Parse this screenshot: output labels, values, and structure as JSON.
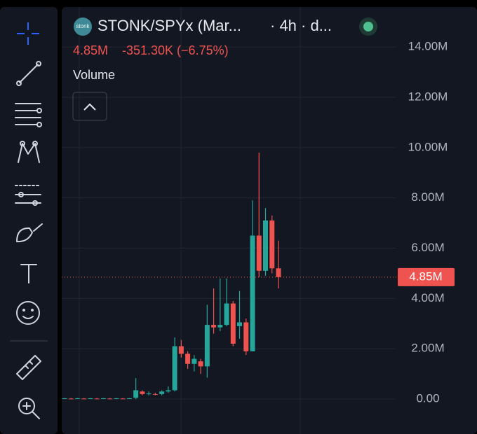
{
  "header": {
    "logo": "stonk",
    "symbol": "STONK/SPYx (Mar...",
    "interval": "· 4h · d...",
    "last": "4.85M",
    "change": "-351.30K (−6.75%)",
    "indicator": "Volume"
  },
  "chart_data": {
    "type": "candlestick",
    "open": [
      0.02,
      0.02,
      0.02,
      0.02,
      0.02,
      0.02,
      0.02,
      0.02,
      0.02,
      0.02,
      0.02,
      0.05,
      0.3,
      0.2,
      0.2,
      0.2,
      0.3,
      0.35,
      2.1,
      1.8,
      1.4,
      1.5,
      1.3,
      2.95,
      2.85,
      2.95,
      3.8,
      2.9,
      3.05,
      1.9,
      6.5,
      5.1,
      7.1,
      5.2
    ],
    "high": [
      0.04,
      0.04,
      0.04,
      0.04,
      0.04,
      0.04,
      0.04,
      0.04,
      0.04,
      0.04,
      0.04,
      0.83,
      0.35,
      0.3,
      0.25,
      0.35,
      0.5,
      2.45,
      2.35,
      1.9,
      1.75,
      1.6,
      3.75,
      4.4,
      4.8,
      4.8,
      3.9,
      4.3,
      3.2,
      7.9,
      9.8,
      7.6,
      7.3,
      6.3
    ],
    "low": [
      0.01,
      0.01,
      0.01,
      0.01,
      0.01,
      0.01,
      0.01,
      0.01,
      0.01,
      0.01,
      0.01,
      0.0,
      0.15,
      0.15,
      0.15,
      0.15,
      0.25,
      0.3,
      1.65,
      1.2,
      1.1,
      1.0,
      0.85,
      2.6,
      2.7,
      2.9,
      2.1,
      2.4,
      1.75,
      1.9,
      4.85,
      4.9,
      5.0,
      4.4
    ],
    "close": [
      0.03,
      0.01,
      0.03,
      0.01,
      0.03,
      0.01,
      0.03,
      0.01,
      0.03,
      0.01,
      0.03,
      0.35,
      0.2,
      0.22,
      0.18,
      0.3,
      0.35,
      2.1,
      1.8,
      1.4,
      1.6,
      1.3,
      2.95,
      2.85,
      2.95,
      3.8,
      2.2,
      3.05,
      1.9,
      6.5,
      5.1,
      7.1,
      5.2,
      4.85
    ],
    "up_color": "#26a69a",
    "down_color": "#ef5350",
    "ylim": [
      -1.39,
      15.59
    ],
    "yticks": [
      {
        "value": 0,
        "label": "0.00"
      },
      {
        "value": 2,
        "label": "2.00M"
      },
      {
        "value": 4,
        "label": "4.00M"
      },
      {
        "value": 6,
        "label": "6.00M"
      },
      {
        "value": 8,
        "label": "8.00M"
      },
      {
        "value": 10,
        "label": "10.00M"
      },
      {
        "value": 12,
        "label": "12.00M"
      },
      {
        "value": 14,
        "label": "14.00M"
      }
    ],
    "last_price": {
      "value": 4.85,
      "label": "4.85M"
    },
    "grid": true
  }
}
